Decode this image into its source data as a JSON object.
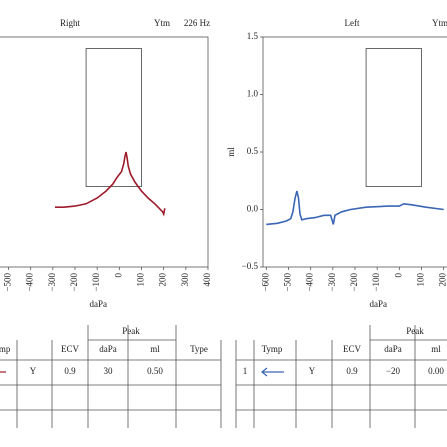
{
  "chart_data": [
    {
      "type": "line",
      "title": "Right",
      "annotations": [
        "Ytm",
        "226 Hz"
      ],
      "xlabel": "daPa",
      "xlim": [
        -615,
        400
      ],
      "ylim": [
        -0.5,
        1.5
      ],
      "xticks": [
        {
          "value": -500,
          "label": "−500"
        },
        {
          "value": -400,
          "label": "−400"
        },
        {
          "value": -300,
          "label": "−300"
        },
        {
          "value": -200,
          "label": "−200"
        },
        {
          "value": -100,
          "label": "−100"
        },
        0,
        100,
        200,
        300,
        400
      ],
      "box": {
        "x": [
          -150,
          100
        ],
        "y": [
          0.2,
          1.4
        ]
      },
      "series": [
        {
          "color": "#9e1b2a",
          "x": [
            -290,
            -250,
            -200,
            -150,
            -100,
            -60,
            -30,
            -10,
            10,
            20,
            25,
            30,
            35,
            40,
            50,
            70,
            100,
            130,
            160,
            180,
            195,
            200,
            205
          ],
          "values": [
            0.02,
            0.02,
            0.03,
            0.05,
            0.1,
            0.16,
            0.22,
            0.28,
            0.33,
            0.4,
            0.46,
            0.5,
            0.45,
            0.38,
            0.31,
            0.24,
            0.16,
            0.1,
            0.05,
            0.01,
            -0.02,
            -0.04,
            0.01
          ]
        }
      ]
    },
    {
      "type": "line",
      "title": "Left",
      "annotations": [
        "Ytm"
      ],
      "xlabel": "daPa",
      "ylabel": "ml",
      "xlim": [
        -615,
        400
      ],
      "ylim": [
        -0.5,
        1.5
      ],
      "xticks": [
        {
          "value": -600,
          "label": "−600"
        },
        {
          "value": -500,
          "label": "−500"
        },
        {
          "value": -400,
          "label": "−400"
        },
        {
          "value": -300,
          "label": "−300"
        },
        {
          "value": -200,
          "label": "−200"
        },
        {
          "value": -100,
          "label": "−100"
        },
        0,
        100,
        200
      ],
      "yticks": [
        {
          "value": -0.5,
          "label": "−0.5"
        },
        {
          "value": 0,
          "label": "0.0"
        },
        0.5,
        {
          "value": 1,
          "label": "1.0"
        },
        1.5
      ],
      "box": {
        "x": [
          -150,
          100
        ],
        "y": [
          0.2,
          1.4
        ]
      },
      "series": [
        {
          "color": "#3a66b5",
          "x": [
            -600,
            -550,
            -510,
            -490,
            -480,
            -470,
            -462,
            -455,
            -448,
            -440,
            -420,
            -380,
            -340,
            -310,
            -302,
            -298,
            -290,
            -260,
            -220,
            -150,
            -50,
            0,
            20,
            60,
            120,
            200
          ],
          "values": [
            -0.13,
            -0.12,
            -0.1,
            -0.08,
            -0.02,
            0.1,
            0.16,
            0.1,
            -0.04,
            -0.09,
            -0.08,
            -0.07,
            -0.05,
            -0.05,
            -0.1,
            -0.13,
            -0.05,
            -0.02,
            0.0,
            0.02,
            0.03,
            0.03,
            0.05,
            0.04,
            0.02,
            0.0
          ]
        }
      ]
    }
  ],
  "tables": [
    {
      "group": "Peak",
      "columns": [
        "Tymp",
        "ECV",
        "daPa",
        "ml",
        "Type"
      ],
      "rows": [
        [
          "Y",
          "0.9",
          "30",
          "0.50"
        ]
      ]
    },
    {
      "group": "Peak",
      "columns": [
        "Tymp",
        "ECV",
        "daPa",
        "ml"
      ],
      "rows": [
        [
          "1",
          "Y",
          "0.9",
          "−20",
          "0.00"
        ]
      ]
    }
  ]
}
